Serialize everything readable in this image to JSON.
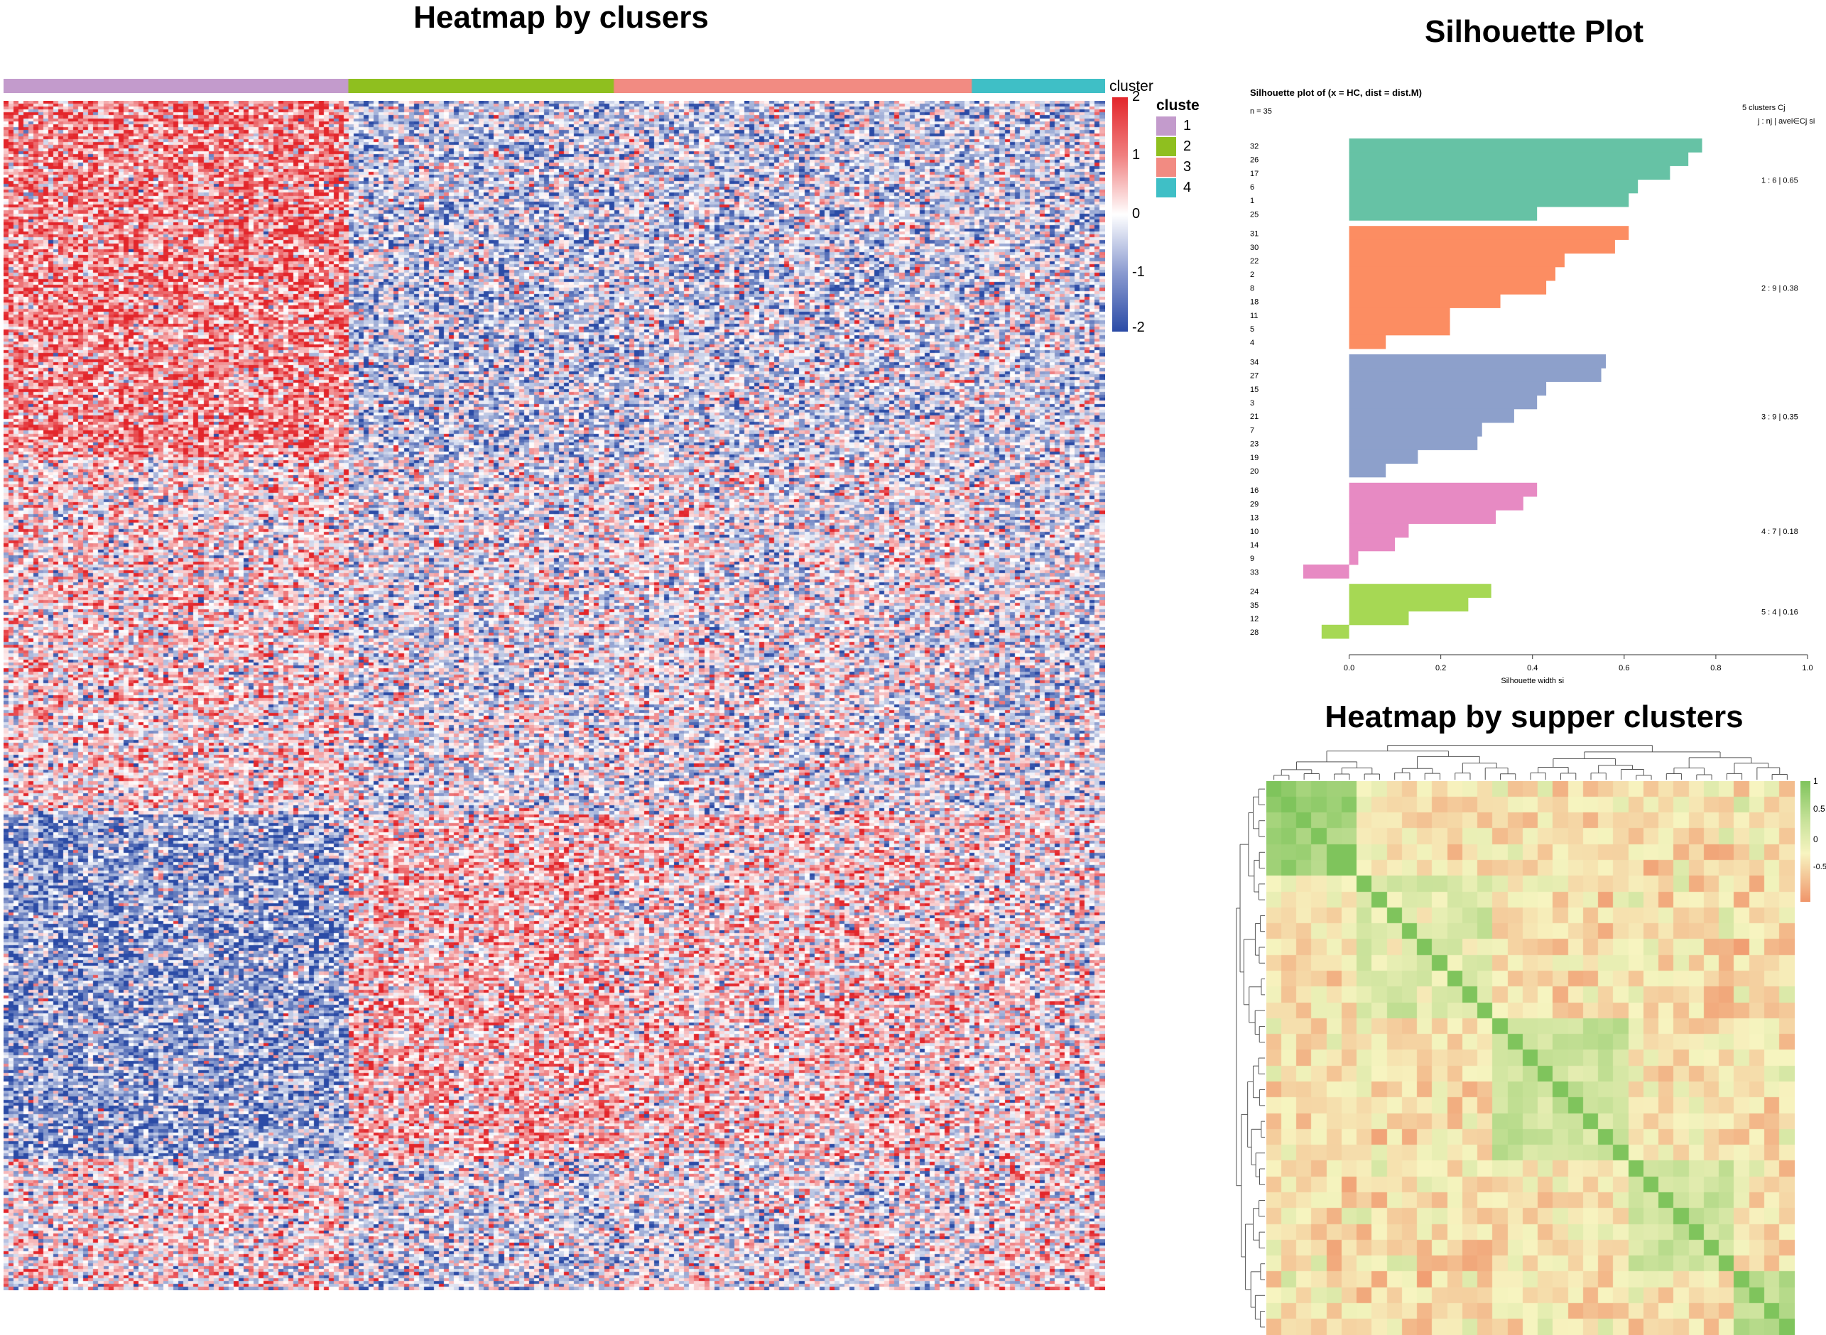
{
  "titles": {
    "heatmap": "Heatmap by clusers",
    "silhouette": "Silhouette Plot",
    "supper": "Heatmap by supper clusters"
  },
  "colors": {
    "cluster_1": "#c39bcc",
    "cluster_2": "#8fbf1f",
    "cluster_3": "#f28b82",
    "cluster_4": "#3fbfc6",
    "heat_high": "#e3262b",
    "heat_mid": "#ffffff",
    "heat_low": "#2b4ba6",
    "sil_1": "#66c2a5",
    "sil_2": "#fc8d62",
    "sil_3": "#8da0cb",
    "sil_4": "#e78ac3",
    "sil_5": "#a6d854",
    "cor_high": "#7fc45c",
    "cor_mid": "#f7f4c0",
    "cor_low": "#f0956a"
  },
  "heatmap_legend": {
    "annotation_title": "cluster",
    "scale_ticks": [
      "2",
      "1",
      "0",
      "-1",
      "-2"
    ],
    "clusters_title": "cluste",
    "clusters": [
      "1",
      "2",
      "3",
      "4"
    ]
  },
  "chart_data": [
    {
      "type": "heatmap",
      "title": "Heatmap by clusers",
      "color_range": [
        -2,
        2
      ],
      "column_annotation": {
        "name": "cluster",
        "groups": [
          {
            "cluster": "1",
            "share": 0.313
          },
          {
            "cluster": "2",
            "share": 0.241
          },
          {
            "cluster": "3",
            "share": 0.325
          },
          {
            "cluster": "4",
            "share": 0.121
          }
        ]
      },
      "row_blocks": [
        {
          "share": 0.3,
          "means": [
            0.9,
            -0.45,
            -0.35,
            -0.35
          ]
        },
        {
          "share": 0.3,
          "means": [
            0.25,
            -0.15,
            -0.1,
            -0.25
          ]
        },
        {
          "share": 0.29,
          "means": [
            -0.85,
            0.5,
            0.3,
            0.1
          ]
        },
        {
          "share": 0.11,
          "means": [
            0.15,
            -0.3,
            -0.1,
            0.2
          ]
        }
      ]
    },
    {
      "type": "bar",
      "orientation": "horizontal",
      "title": "Silhouette plot of (x = HC, dist = dist.M)",
      "n_label": "n = 35",
      "header_right": "5  clusters  Cj",
      "header_right2": "j :  nj | avei∈Cj  si",
      "xlabel": "Silhouette width si",
      "xlim": [
        -0.1,
        1.0
      ],
      "xticks": [
        "0.0",
        "0.2",
        "0.4",
        "0.6",
        "0.8",
        "1.0"
      ],
      "clusters": [
        {
          "label": "1 :  6  |  0.65",
          "ids": [
            "32",
            "26",
            "17",
            "6",
            "1",
            "25"
          ],
          "values": [
            0.77,
            0.74,
            0.7,
            0.63,
            0.61,
            0.41
          ]
        },
        {
          "label": "2 :  9  |  0.38",
          "ids": [
            "31",
            "30",
            "22",
            "2",
            "8",
            "18",
            "11",
            "5",
            "4"
          ],
          "values": [
            0.61,
            0.58,
            0.47,
            0.45,
            0.43,
            0.33,
            0.22,
            0.22,
            0.08
          ]
        },
        {
          "label": "3 :  9  |  0.35",
          "ids": [
            "34",
            "27",
            "15",
            "3",
            "21",
            "7",
            "23",
            "19",
            "20"
          ],
          "values": [
            0.56,
            0.55,
            0.43,
            0.41,
            0.36,
            0.29,
            0.28,
            0.15,
            0.08
          ]
        },
        {
          "label": "4 :  7  |  0.18",
          "ids": [
            "16",
            "29",
            "13",
            "10",
            "14",
            "9",
            "33"
          ],
          "values": [
            0.41,
            0.38,
            0.32,
            0.13,
            0.1,
            0.02,
            -0.1
          ]
        },
        {
          "label": "5 :  4  |  0.16",
          "ids": [
            "24",
            "35",
            "12",
            "28"
          ],
          "values": [
            0.31,
            0.26,
            0.13,
            -0.06
          ]
        }
      ]
    },
    {
      "type": "heatmap",
      "title": "Heatmap by supper clusters",
      "color_range": [
        -0.5,
        1
      ],
      "legend_ticks": [
        "1",
        "0.5",
        "0",
        "-0.5"
      ],
      "n": 35,
      "blocks": [
        {
          "size": 6,
          "within": 0.75
        },
        {
          "size": 9,
          "within": 0.25
        },
        {
          "size": 9,
          "within": 0.35
        },
        {
          "size": 7,
          "within": 0.3
        },
        {
          "size": 4,
          "within": 0.4
        }
      ]
    }
  ]
}
